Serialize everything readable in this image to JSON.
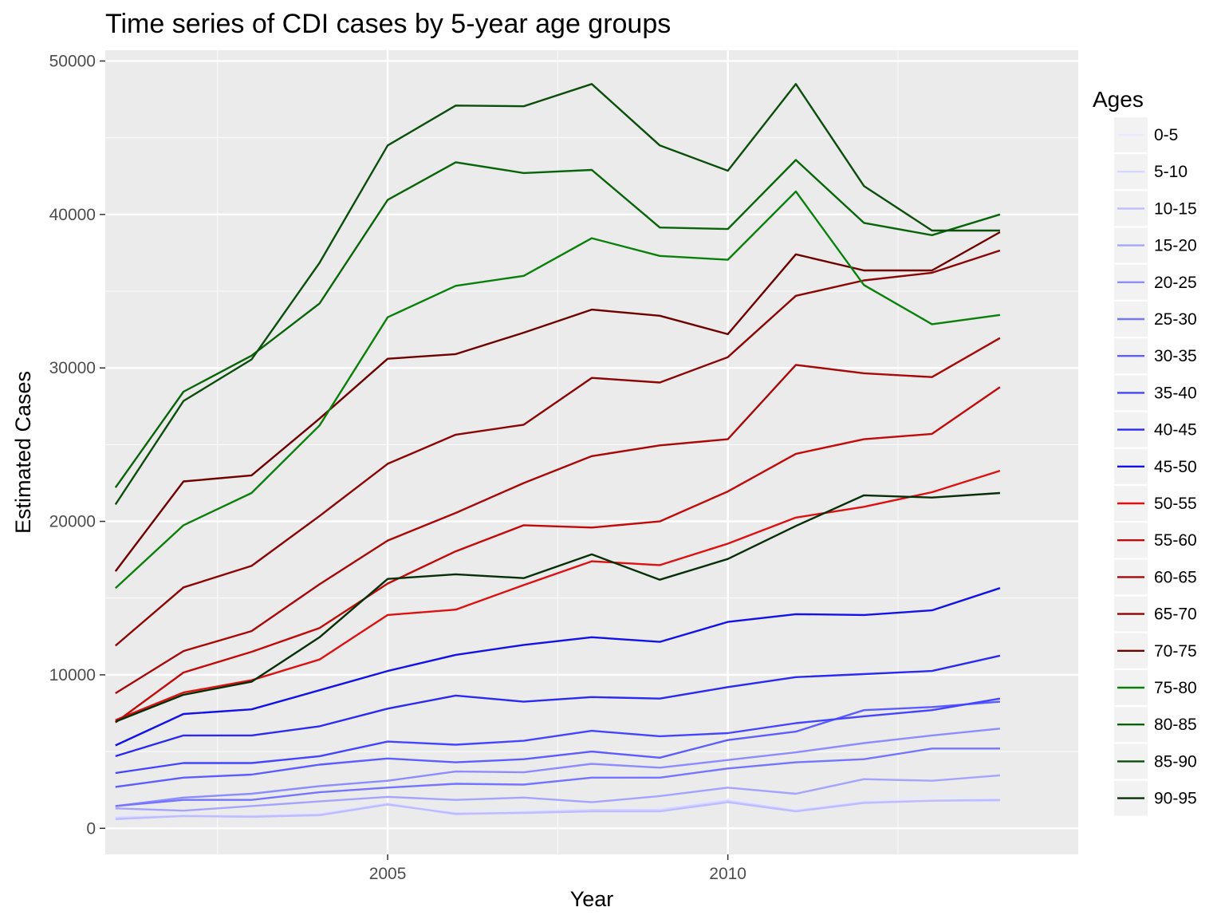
{
  "chart_data": {
    "type": "line",
    "title": "Time series of CDI cases by 5-year age groups",
    "xlabel": "Year",
    "ylabel": "Estimated Cases",
    "xlim": [
      2000.85,
      2015.15
    ],
    "ylim": [
      -1700,
      50700
    ],
    "x_ticks": [
      2005,
      2010
    ],
    "x_minor": [
      2002.5,
      2007.5,
      2012.5
    ],
    "y_ticks": [
      0,
      10000,
      20000,
      30000,
      40000,
      50000
    ],
    "grid": true,
    "legend_title": "Ages",
    "legend_position": "right",
    "x": [
      2001,
      2002,
      2003,
      2004,
      2005,
      2006,
      2007,
      2008,
      2009,
      2010,
      2011,
      2012,
      2013,
      2014
    ],
    "series": [
      {
        "name": "0-5",
        "color": "#e8e8ff",
        "values": [
          800,
          900,
          800,
          1100,
          1600,
          1100,
          1250,
          1200,
          1300,
          1900,
          1250,
          1750,
          2100,
          1900
        ]
      },
      {
        "name": "5-10",
        "color": "#d6d6ff",
        "values": [
          700,
          800,
          800,
          900,
          1600,
          900,
          1050,
          1200,
          1200,
          1800,
          1150,
          1700,
          1800,
          1800
        ]
      },
      {
        "name": "10-15",
        "color": "#bcbcff",
        "values": [
          600,
          800,
          750,
          850,
          1550,
          950,
          1000,
          1100,
          1100,
          1700,
          1100,
          1650,
          1800,
          1850
        ]
      },
      {
        "name": "15-20",
        "color": "#a4a4ff",
        "values": [
          1300,
          1150,
          1450,
          1750,
          2050,
          1850,
          2000,
          1700,
          2100,
          2650,
          2250,
          3200,
          3100,
          3450
        ]
      },
      {
        "name": "20-25",
        "color": "#8c8cff",
        "values": [
          1450,
          2000,
          2250,
          2750,
          3100,
          3700,
          3650,
          4200,
          3950,
          4450,
          4950,
          5550,
          6050,
          6500
        ]
      },
      {
        "name": "25-30",
        "color": "#7474ff",
        "values": [
          1450,
          1850,
          1850,
          2350,
          2650,
          2900,
          2850,
          3300,
          3300,
          3900,
          4300,
          4500,
          5200,
          5200
        ]
      },
      {
        "name": "30-35",
        "color": "#5c5cff",
        "values": [
          2700,
          3300,
          3500,
          4150,
          4550,
          4300,
          4500,
          5000,
          4600,
          5750,
          6300,
          7700,
          7900,
          8250
        ]
      },
      {
        "name": "35-40",
        "color": "#4444ff",
        "values": [
          3600,
          4250,
          4250,
          4700,
          5650,
          5450,
          5700,
          6350,
          6000,
          6200,
          6850,
          7300,
          7700,
          8450
        ]
      },
      {
        "name": "40-45",
        "color": "#2a2af0",
        "values": [
          4700,
          6050,
          6050,
          6650,
          7800,
          8650,
          8250,
          8550,
          8450,
          9200,
          9850,
          10050,
          10250,
          11250
        ]
      },
      {
        "name": "45-50",
        "color": "#1111e8",
        "values": [
          5400,
          7450,
          7750,
          9000,
          10250,
          11300,
          11950,
          12450,
          12150,
          13450,
          13950,
          13900,
          14200,
          15650
        ]
      },
      {
        "name": "50-55",
        "color": "#dd1111",
        "values": [
          7050,
          8850,
          9650,
          11000,
          13900,
          14250,
          15850,
          17400,
          17150,
          18550,
          20250,
          20950,
          21900,
          23300
        ]
      },
      {
        "name": "55-60",
        "color": "#c20a0a",
        "values": [
          6900,
          10150,
          11500,
          13050,
          15950,
          18050,
          19750,
          19600,
          20000,
          21950,
          24400,
          25350,
          25700,
          28750
        ]
      },
      {
        "name": "60-65",
        "color": "#a80808",
        "values": [
          8800,
          11550,
          12850,
          15900,
          18750,
          20550,
          22500,
          24250,
          24950,
          25350,
          30200,
          29650,
          29400,
          31950
        ]
      },
      {
        "name": "65-70",
        "color": "#8b0505",
        "values": [
          11900,
          15700,
          17100,
          20350,
          23750,
          25650,
          26300,
          29350,
          29050,
          30700,
          34700,
          35700,
          36200,
          37650
        ]
      },
      {
        "name": "70-75",
        "color": "#6e0000",
        "values": [
          16750,
          22600,
          23000,
          26700,
          30600,
          30900,
          32300,
          33800,
          33400,
          32200,
          37400,
          36350,
          36350,
          38850
        ]
      },
      {
        "name": "75-80",
        "color": "#0a800a",
        "values": [
          15650,
          19750,
          21850,
          26250,
          33300,
          35350,
          36000,
          38450,
          37300,
          37050,
          41500,
          35400,
          32850,
          33450
        ]
      },
      {
        "name": "80-85",
        "color": "#086408",
        "values": [
          22200,
          28450,
          30800,
          34200,
          40950,
          43400,
          42700,
          42900,
          39150,
          39050,
          43550,
          39450,
          38650,
          40000
        ]
      },
      {
        "name": "85-90",
        "color": "#0b4d0b",
        "values": [
          21100,
          27850,
          30550,
          36850,
          44500,
          47100,
          47050,
          48500,
          44500,
          42850,
          48500,
          41850,
          38950,
          38950
        ]
      },
      {
        "name": "90-95",
        "color": "#072f07",
        "values": [
          6950,
          8700,
          9550,
          12450,
          16250,
          16550,
          16300,
          17850,
          16200,
          17550,
          19700,
          21700,
          21550,
          21850
        ]
      }
    ]
  }
}
